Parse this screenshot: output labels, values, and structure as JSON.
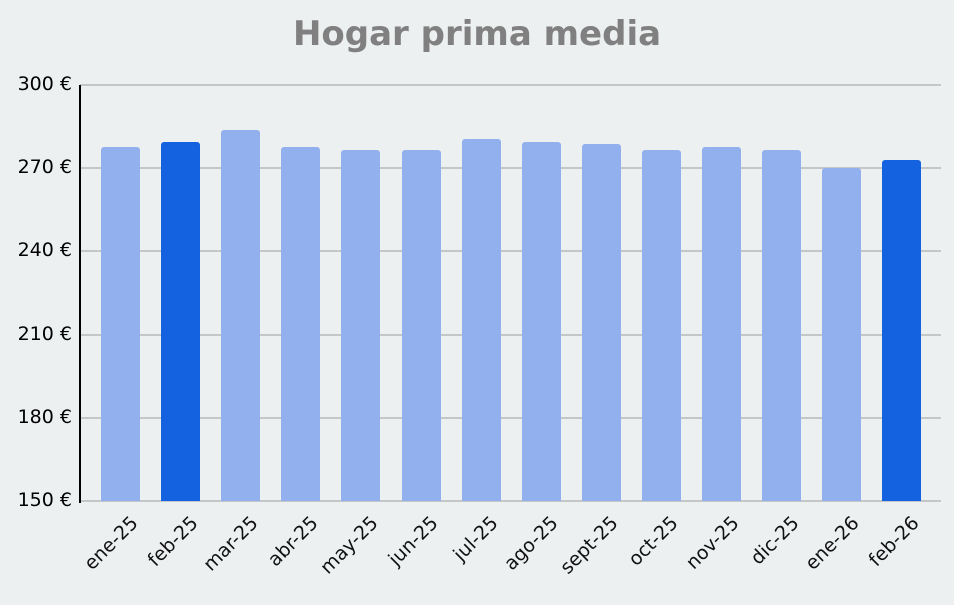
{
  "title": "Hogar prima media",
  "colors": {
    "background": "#edf0f1",
    "bar_default": "#93b0ee",
    "bar_highlight": "#1562e0",
    "grid": "#c4c6c8",
    "title": "#808080"
  },
  "y_ticks": [
    "300 €",
    "270 €",
    "240 €",
    "210 €",
    "180 €",
    "150 €"
  ],
  "chart_data": {
    "type": "bar",
    "title": "Hogar prima media",
    "xlabel": "",
    "ylabel": "",
    "ylim": [
      150,
      300
    ],
    "yticks": [
      150,
      180,
      210,
      240,
      270,
      300
    ],
    "y_unit": "€",
    "grid": true,
    "legend": null,
    "categories": [
      "ene-25",
      "feb-25",
      "mar-25",
      "abr-25",
      "may-25",
      "jun-25",
      "jul-25",
      "ago-25",
      "sept-25",
      "oct-25",
      "nov-25",
      "dic-25",
      "ene-26",
      "feb-26"
    ],
    "values": [
      277.6,
      279.4,
      283.8,
      277.6,
      276.6,
      276.6,
      280.5,
      279.4,
      278.7,
      276.6,
      277.6,
      276.6,
      270.1,
      273.0
    ],
    "highlighted": [
      "feb-25",
      "feb-26"
    ]
  }
}
